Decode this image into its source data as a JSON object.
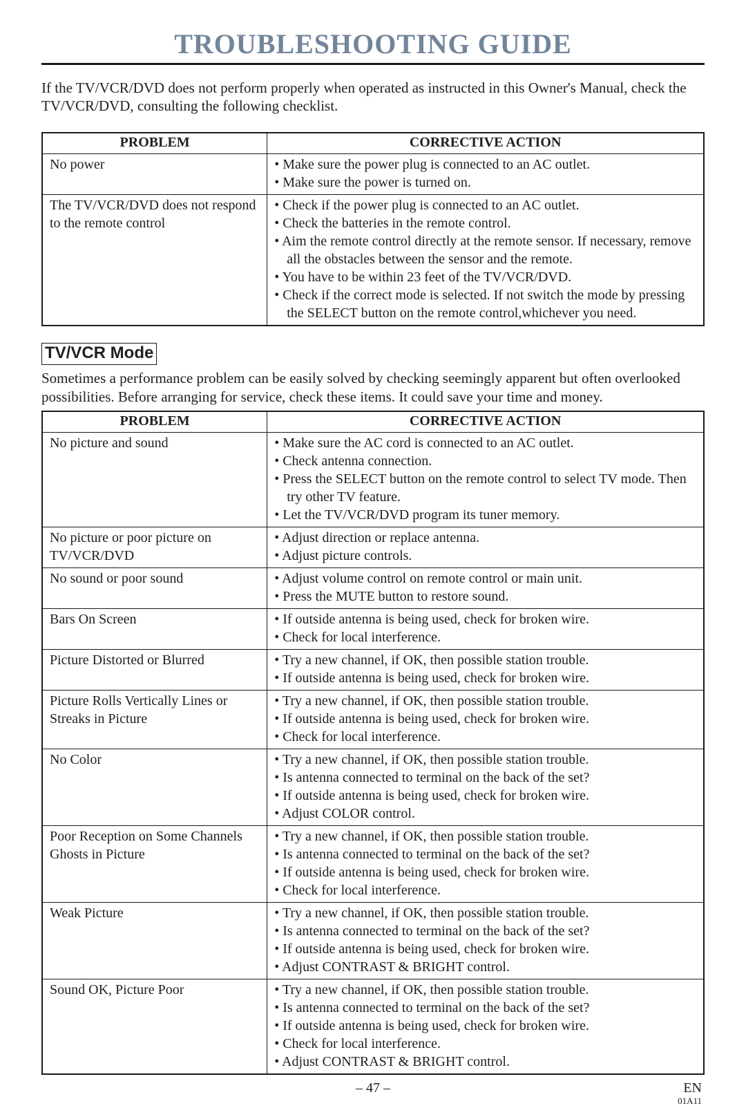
{
  "page": {
    "title": "TROUBLESHOOTING GUIDE",
    "intro": "If the TV/VCR/DVD does not perform properly when operated as instructed in this Owner's Manual, check the TV/VCR/DVD, consulting the following checklist.",
    "footer_page": "– 47 –",
    "footer_lang": "EN",
    "footer_code": "01A11",
    "colors": {
      "title_color": "#72859a",
      "rule_color": "#1a1a1a",
      "text_color": "#202020",
      "background": "#ffffff"
    }
  },
  "table1": {
    "header_problem": "PROBLEM",
    "header_action": "CORRECTIVE ACTION",
    "rows": [
      {
        "problem": "No power",
        "actions": [
          "Make sure the power plug is connected to an AC outlet.",
          "Make sure the power is turned on."
        ]
      },
      {
        "problem": "The TV/VCR/DVD does not respond to the remote control",
        "actions": [
          "Check if the power plug is connected to an AC outlet.",
          "Check the batteries in the remote control.",
          "Aim the remote control directly at the remote sensor. If necessary, remove all the obstacles between the sensor and the remote.",
          "You have to be within 23 feet of the TV/VCR/DVD.",
          "Check if the correct mode is selected.  If not switch the mode by pressing the SELECT button on the remote control,whichever you need."
        ]
      }
    ]
  },
  "tvvcr": {
    "heading": "TV/VCR Mode",
    "intro": "Sometimes a performance problem can be easily solved by checking seemingly apparent but often overlooked possibilities. Before arranging for service, check these items. It could save your time and money."
  },
  "table2": {
    "header_problem": "PROBLEM",
    "header_action": "CORRECTIVE ACTION",
    "rows": [
      {
        "problem": "No picture and sound",
        "actions": [
          "Make sure the AC cord is connected to an AC outlet.",
          "Check antenna connection.",
          "Press the SELECT button on the remote control to select TV mode. Then try other TV feature.",
          "Let the TV/VCR/DVD program its tuner memory."
        ]
      },
      {
        "problem": "No picture or poor picture on TV/VCR/DVD",
        "actions": [
          "Adjust direction or replace antenna.",
          "Adjust picture controls."
        ]
      },
      {
        "problem": "No sound or poor sound",
        "actions": [
          "Adjust volume control on remote control or main unit.",
          "Press the MUTE button to restore sound."
        ]
      },
      {
        "problem": "Bars On Screen",
        "actions": [
          "If outside antenna is being used, check for broken wire.",
          "Check for local interference."
        ]
      },
      {
        "problem": "Picture Distorted or Blurred",
        "actions": [
          "Try a new channel, if OK, then possible station trouble.",
          "If outside antenna is being used, check for broken wire."
        ]
      },
      {
        "problem": "Picture Rolls Vertically Lines or Streaks in Picture",
        "actions": [
          "Try a new channel, if OK, then possible station trouble.",
          "If outside antenna is being used, check for broken wire.",
          "Check for local interference."
        ]
      },
      {
        "problem": "No Color",
        "actions": [
          "Try a new channel, if OK, then possible station trouble.",
          "Is antenna connected to terminal on the back of the set?",
          "If outside antenna is being used, check for broken wire.",
          "Adjust COLOR control."
        ]
      },
      {
        "problem": "Poor Reception on Some Channels Ghosts in Picture",
        "actions": [
          "Try a new channel, if OK, then possible station trouble.",
          "Is antenna connected to terminal on the back of the set?",
          "If outside antenna is being used, check for broken wire.",
          "Check for local interference."
        ]
      },
      {
        "problem": "Weak Picture",
        "actions": [
          "Try a new channel, if OK, then possible station trouble.",
          "Is antenna connected to terminal on the back of the set?",
          "If outside antenna is being used, check for broken wire.",
          "Adjust CONTRAST & BRIGHT control."
        ]
      },
      {
        "problem": "Sound OK, Picture Poor",
        "actions": [
          "Try a new channel, if OK, then possible station trouble.",
          "Is antenna connected to terminal on the back of the set?",
          "If outside antenna is being used, check for broken wire.",
          "Check for local interference.",
          "Adjust CONTRAST & BRIGHT control."
        ]
      }
    ]
  }
}
